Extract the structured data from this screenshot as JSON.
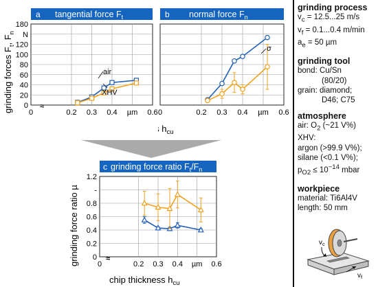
{
  "chart_data": [
    {
      "id": "a",
      "type": "line",
      "panel_letter": "a",
      "title_text": "tangential force F",
      "title_sub": "t",
      "ylabel_text": "grinding forces F",
      "ylabel_sub1": "t",
      "ylabel_sep": ", F",
      "ylabel_sub2": "n",
      "ylim": [
        0,
        180
      ],
      "yticks": [
        "0",
        "20",
        "40",
        "60",
        "80",
        "100",
        "120",
        "N",
        "180"
      ],
      "xlim": [
        0,
        0.6
      ],
      "xticks": [
        "0",
        "0.2",
        "0.3",
        "0.4",
        "µm",
        "0.6"
      ],
      "series": [
        {
          "name": "air",
          "color": "#1f5fb5",
          "marker": "square",
          "x": [
            0.23,
            0.3,
            0.36,
            0.4,
            0.52
          ],
          "y": [
            6,
            18,
            38,
            50,
            55
          ]
        },
        {
          "name": "XHV",
          "color": "#f0a01c",
          "marker": "square",
          "x": [
            0.23,
            0.3,
            0.36,
            0.4,
            0.52
          ],
          "y": [
            5,
            15,
            27,
            36,
            49
          ]
        }
      ]
    },
    {
      "id": "b",
      "type": "line",
      "panel_letter": "b",
      "title_text": "normal force F",
      "title_sub": "n",
      "ylim": [
        0,
        180
      ],
      "xlim": [
        0,
        0.6
      ],
      "xticks": [
        "0",
        "0.2",
        "0.3",
        "0.4",
        "µm",
        "0.6"
      ],
      "xlabel_text": "chip thickness h",
      "xlabel_sub": "cu",
      "annotation": "σ",
      "series": [
        {
          "name": "air",
          "color": "#1f5fb5",
          "marker": "circle",
          "x": [
            0.23,
            0.3,
            0.36,
            0.4,
            0.52
          ],
          "y": [
            12,
            48,
            98,
            108,
            150
          ]
        },
        {
          "name": "XHV",
          "color": "#f0a01c",
          "marker": "circle",
          "x": [
            0.23,
            0.3,
            0.36,
            0.4,
            0.52
          ],
          "y": [
            10,
            25,
            50,
            35,
            85
          ],
          "err": [
            4,
            10,
            22,
            10,
            50
          ]
        }
      ]
    },
    {
      "id": "c",
      "type": "line",
      "panel_letter": "c",
      "title_text": "grinding force ratio F",
      "title_sub1": "t",
      "title_sep": "/F",
      "title_sub2": "n",
      "ylabel_text": "grinding force ratio µ",
      "ylim": [
        0,
        1.2
      ],
      "yticks": [
        "0",
        "0.2",
        "0.4",
        "0.6",
        "0.8",
        "-",
        "1.2"
      ],
      "xlim": [
        0,
        0.6
      ],
      "xticks": [
        "0",
        "0.2",
        "0.3",
        "0.4",
        "µm",
        "0.6"
      ],
      "xlabel_text": "chip thickness h",
      "xlabel_sub": "cu",
      "series": [
        {
          "name": "air",
          "color": "#1f5fb5",
          "marker": "triangle",
          "x": [
            0.23,
            0.3,
            0.36,
            0.4,
            0.52
          ],
          "y": [
            0.55,
            0.43,
            0.42,
            0.47,
            0.4
          ],
          "err": [
            0.05,
            0.02,
            0.02,
            0.04,
            0.02
          ]
        },
        {
          "name": "XHV",
          "color": "#f0a01c",
          "marker": "triangle",
          "x": [
            0.23,
            0.3,
            0.36,
            0.4,
            0.52
          ],
          "y": [
            0.8,
            0.74,
            0.72,
            0.93,
            0.7
          ],
          "err": [
            0.18,
            0.2,
            0.3,
            0.2,
            0.18
          ]
        }
      ]
    }
  ],
  "colors": {
    "header_bg": "#1565c0",
    "header_text": "#ffffff",
    "arrow": "#aaaaaa",
    "grid": "#999999"
  },
  "arrow_shape": "down-arrow",
  "panel_b_line_labels": {
    "air": "air",
    "xhv": "XHV"
  },
  "sidebar": {
    "process_title": "grinding process",
    "process_lines": [
      "v c = 12.5...25 m/s",
      "v f = 0.1...0.4 m/min",
      "a e = 50 µm"
    ],
    "vc_main": "v",
    "vc_sub": "c",
    "vc_rest": " = 12.5...25 m/s",
    "vf_main": "v",
    "vf_sub": "f",
    "vf_rest": " = 0.1...0.4 m/min",
    "ae_main": "a",
    "ae_sub": "e",
    "ae_rest": " = 50 µm",
    "tool_title": "grinding tool",
    "bond_line": "bond: Cu/Sn",
    "bond_ratio": "(80/20)",
    "grain_line": "grain: diamond;",
    "grain_spec": "D46; C75",
    "atm_title": "atmosphere",
    "air_main": "air: O",
    "air_sub": "2",
    "air_rest": " (~21 V%)",
    "xhv_label": "XHV:",
    "argon_line": "argon (>99.9 V%);",
    "silane_line": "silane (<0.1 V%);",
    "p_main": "p",
    "p_sub": "O2",
    "p_rest": " ≤ 10",
    "p_sup": "−14",
    "p_unit": " mbar",
    "wp_title": "workpiece",
    "material_line": "material:  Ti6Al4V",
    "length_line": "length:     50 mm",
    "diagram_vc_main": "v",
    "diagram_vc_sub": "c",
    "diagram_vf_main": "v",
    "diagram_vf_sub": "f"
  }
}
